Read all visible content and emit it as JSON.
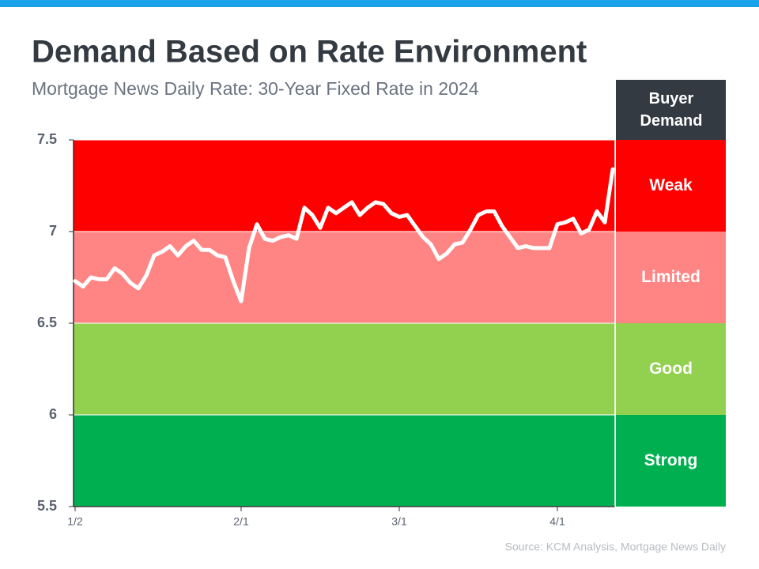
{
  "chart_data": {
    "type": "line",
    "title": "Demand Based on Rate Environment",
    "subtitle": "Mortgage News Daily Rate: 30-Year Fixed Rate in 2024",
    "source": "Source: KCM Analysis, Mortgage News Daily",
    "zones_header": "Buyer Demand",
    "zones": [
      {
        "label": "Weak",
        "from": 7,
        "to": 7.5,
        "color": "#ff0000"
      },
      {
        "label": "Limited",
        "from": 6.5,
        "to": 7,
        "color": "#ff8585"
      },
      {
        "label": "Good",
        "from": 6,
        "to": 6.5,
        "color": "#92d050"
      },
      {
        "label": "Strong",
        "from": 5.5,
        "to": 6,
        "color": "#00b050"
      }
    ],
    "categories": [
      "1/2",
      null,
      null,
      null,
      null,
      null,
      null,
      null,
      null,
      null,
      null,
      null,
      null,
      null,
      null,
      null,
      null,
      null,
      null,
      null,
      null,
      "2/1",
      null,
      null,
      null,
      null,
      null,
      null,
      null,
      null,
      null,
      null,
      null,
      null,
      null,
      null,
      null,
      null,
      null,
      null,
      null,
      "3/1",
      null,
      null,
      null,
      null,
      null,
      null,
      null,
      null,
      null,
      null,
      null,
      null,
      null,
      null,
      null,
      null,
      null,
      null,
      null,
      "4/1",
      null,
      null,
      null,
      null,
      null,
      null,
      null
    ],
    "series": [
      {
        "name": "30-Year Fixed Rate",
        "color": "#ffffff",
        "values": [
          6.73,
          6.7,
          6.75,
          6.74,
          6.74,
          6.8,
          6.77,
          6.72,
          6.69,
          6.76,
          6.87,
          6.89,
          6.92,
          6.87,
          6.92,
          6.95,
          6.9,
          6.9,
          6.87,
          6.86,
          6.73,
          6.62,
          6.91,
          7.04,
          6.96,
          6.95,
          6.97,
          6.98,
          6.96,
          7.13,
          7.09,
          7.02,
          7.13,
          7.1,
          7.13,
          7.16,
          7.09,
          7.13,
          7.16,
          7.15,
          7.1,
          7.08,
          7.09,
          7.03,
          6.97,
          6.93,
          6.85,
          6.88,
          6.93,
          6.94,
          7.01,
          7.09,
          7.11,
          7.11,
          7.03,
          6.97,
          6.91,
          6.92,
          6.91,
          6.91,
          6.91,
          7.04,
          7.05,
          7.07,
          6.99,
          7.01,
          7.11,
          7.05,
          7.34
        ]
      }
    ],
    "ylim": [
      5.5,
      7.5
    ],
    "yticks": [
      5.5,
      6,
      6.5,
      7,
      7.5
    ]
  }
}
